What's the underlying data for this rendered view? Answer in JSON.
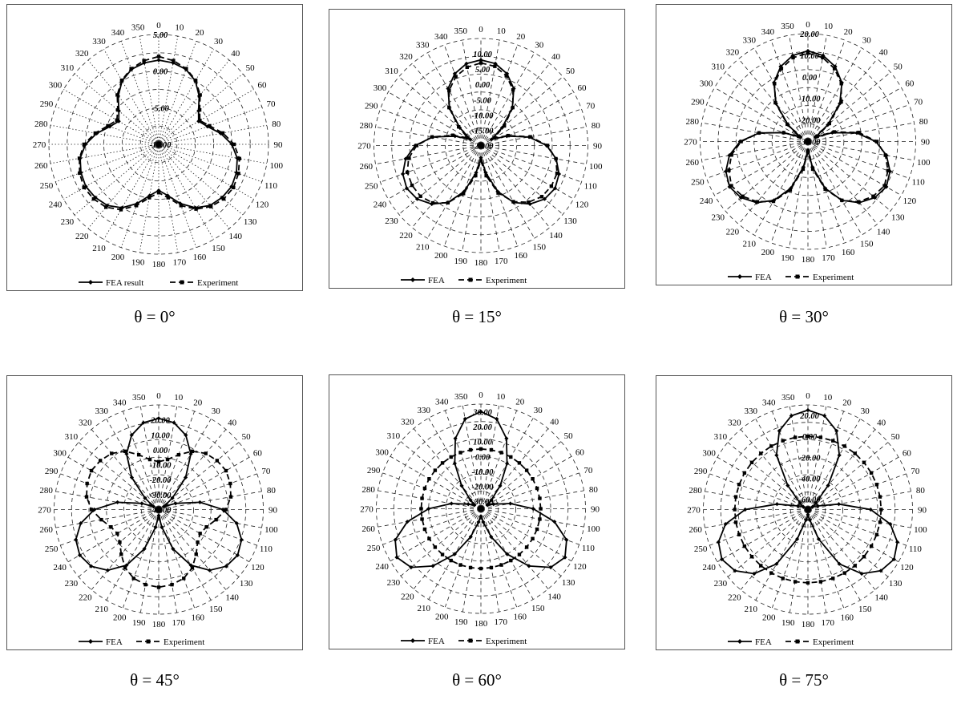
{
  "chart_data": [
    {
      "type": "radar",
      "caption": "θ = 0°",
      "angle_labels": [
        "0",
        "10",
        "20",
        "30",
        "40",
        "50",
        "60",
        "70",
        "80",
        "90",
        "100",
        "110",
        "120",
        "130",
        "140",
        "150",
        "160",
        "170",
        "180",
        "190",
        "200",
        "210",
        "220",
        "230",
        "240",
        "250",
        "260",
        "270",
        "280",
        "290",
        "300",
        "310",
        "320",
        "330",
        "340",
        "350"
      ],
      "radial_tick_labels": [
        "-10.00",
        "-5.00",
        "0.00",
        "5.00"
      ],
      "r_range": [
        -10,
        5
      ],
      "spokes": "dotted",
      "legend": "bottom",
      "series": [
        {
          "name": "FEA result",
          "style": "solid",
          "marker": "diamond",
          "values": [
            1.5,
            1.3,
            0.9,
            0.0,
            -1.4,
            -2.9,
            -3.7,
            -2.9,
            -1.4,
            0.0,
            0.9,
            1.3,
            1.5,
            1.3,
            0.9,
            0.0,
            -1.4,
            -2.9,
            -3.7,
            -2.9,
            -1.4,
            0.0,
            0.9,
            1.3,
            1.5,
            1.3,
            0.9,
            0.0,
            -1.4,
            -2.9,
            -3.7,
            -2.9,
            -1.4,
            0.0,
            0.9,
            1.3
          ]
        },
        {
          "name": "Experiment",
          "style": "dashed",
          "marker": "square",
          "values": [
            2.0,
            1.6,
            1.0,
            0.1,
            -1.2,
            -2.7,
            -3.5,
            -2.6,
            -1.1,
            0.3,
            1.2,
            1.6,
            1.8,
            1.6,
            1.1,
            0.2,
            -1.1,
            -2.6,
            -3.4,
            -2.6,
            -1.1,
            0.3,
            1.2,
            1.6,
            1.8,
            1.5,
            1.0,
            0.2,
            -1.2,
            -2.6,
            -3.4,
            -2.7,
            -1.2,
            0.1,
            1.0,
            1.6
          ]
        }
      ]
    },
    {
      "type": "radar",
      "caption": "θ = 15°",
      "angle_labels": [
        "0",
        "10",
        "20",
        "30",
        "40",
        "50",
        "60",
        "70",
        "80",
        "90",
        "100",
        "110",
        "120",
        "130",
        "140",
        "150",
        "160",
        "170",
        "180",
        "190",
        "200",
        "210",
        "220",
        "230",
        "240",
        "250",
        "260",
        "270",
        "280",
        "290",
        "300",
        "310",
        "320",
        "330",
        "340",
        "350"
      ],
      "radial_tick_labels": [
        "-20.00",
        "-15.00",
        "-10.00",
        "-5.00",
        "0.00",
        "5.00",
        "10.00"
      ],
      "r_range": [
        -20,
        15
      ],
      "spokes": "dashed",
      "legend": "bottom",
      "series": [
        {
          "name": "FEA",
          "style": "solid",
          "marker": "diamond",
          "values": [
            8.0,
            7.2,
            5.0,
            1.5,
            -4.0,
            -11.0,
            -16.0,
            -11.0,
            -4.0,
            1.5,
            5.0,
            7.2,
            8.0,
            7.2,
            5.0,
            1.5,
            -4.0,
            -11.0,
            -16.0,
            -11.0,
            -4.0,
            1.5,
            5.0,
            7.2,
            8.0,
            7.2,
            5.0,
            1.5,
            -4.0,
            -11.0,
            -16.0,
            -11.0,
            -4.0,
            1.5,
            5.0,
            7.2
          ]
        },
        {
          "name": "Experiment",
          "style": "dashed",
          "marker": "square",
          "values": [
            7.0,
            6.3,
            4.3,
            1.0,
            -3.8,
            -10.0,
            -15.0,
            -10.5,
            -3.6,
            1.8,
            4.9,
            6.5,
            6.6,
            6.0,
            4.2,
            1.2,
            -3.5,
            -10.0,
            -15.0,
            -10.0,
            -3.3,
            1.6,
            4.5,
            5.8,
            6.0,
            5.6,
            4.0,
            1.0,
            -3.8,
            -10.2,
            -15.0,
            -10.5,
            -3.8,
            0.8,
            4.0,
            6.0
          ]
        }
      ]
    },
    {
      "type": "radar",
      "caption": "θ = 30°",
      "angle_labels": [
        "0",
        "10",
        "20",
        "30",
        "40",
        "50",
        "60",
        "70",
        "80",
        "90",
        "100",
        "110",
        "120",
        "130",
        "140",
        "150",
        "160",
        "170",
        "180",
        "190",
        "200",
        "210",
        "220",
        "230",
        "240",
        "250",
        "260",
        "270",
        "280",
        "290",
        "300",
        "310",
        "320",
        "330",
        "340",
        "350"
      ],
      "radial_tick_labels": [
        "-30.00",
        "-20.00",
        "-10.00",
        "0.00",
        "10.00",
        "20.00"
      ],
      "r_range": [
        -30,
        20
      ],
      "spokes": "dashed",
      "legend": "bottom",
      "series": [
        {
          "name": "FEA",
          "style": "solid",
          "marker": "diamond",
          "values": [
            12.0,
            10.5,
            7.0,
            1.5,
            -7.0,
            -18.0,
            -26.0,
            -18.0,
            -7.0,
            1.5,
            7.0,
            10.5,
            12.0,
            10.5,
            7.0,
            1.5,
            -7.0,
            -18.0,
            -26.0,
            -18.0,
            -7.0,
            1.5,
            7.0,
            10.5,
            12.0,
            10.5,
            7.0,
            1.5,
            -7.0,
            -18.0,
            -26.0,
            -18.0,
            -7.0,
            1.5,
            7.0,
            10.5
          ]
        },
        {
          "name": "Experiment",
          "style": "dashed",
          "marker": "square",
          "values": [
            11.0,
            9.5,
            6.0,
            1.0,
            -6.0,
            -17.0,
            -25.0,
            -17.0,
            -6.0,
            2.0,
            6.5,
            9.5,
            11.0,
            9.5,
            6.5,
            1.5,
            -6.5,
            -17.0,
            -25.0,
            -17.0,
            -6.0,
            2.0,
            6.5,
            9.5,
            11.0,
            9.0,
            6.0,
            1.0,
            -7.0,
            -18.0,
            -25.0,
            -17.5,
            -6.5,
            1.0,
            6.0,
            9.5
          ]
        }
      ]
    },
    {
      "type": "radar",
      "caption": "θ = 45°",
      "angle_labels": [
        "0",
        "10",
        "20",
        "30",
        "40",
        "50",
        "60",
        "70",
        "80",
        "90",
        "100",
        "110",
        "120",
        "130",
        "140",
        "150",
        "160",
        "170",
        "180",
        "190",
        "200",
        "210",
        "220",
        "230",
        "240",
        "250",
        "260",
        "270",
        "280",
        "290",
        "300",
        "310",
        "320",
        "330",
        "340",
        "350"
      ],
      "radial_tick_labels": [
        "-40.00",
        "-30.00",
        "-20.00",
        "-10.00",
        "0.00",
        "10.00",
        "20.00"
      ],
      "r_range": [
        -40,
        30
      ],
      "spokes": "dashed",
      "legend": "bottom",
      "series": [
        {
          "name": "FEA",
          "style": "solid",
          "marker": "diamond",
          "values": [
            21.0,
            19.0,
            13.0,
            3.0,
            -12.0,
            -28.0,
            -36.0,
            -28.0,
            -12.0,
            3.0,
            13.0,
            19.0,
            21.0,
            19.0,
            13.0,
            3.0,
            -12.0,
            -28.0,
            -36.0,
            -28.0,
            -12.0,
            3.0,
            13.0,
            19.0,
            21.0,
            19.0,
            13.0,
            3.0,
            -12.0,
            -28.0,
            -36.0,
            -28.0,
            -12.0,
            3.0,
            13.0,
            19.0
          ]
        },
        {
          "name": "Experiment",
          "style": "dashed",
          "marker": "square",
          "values": [
            -8.0,
            -6.0,
            -1.0,
            5.0,
            9.0,
            11.0,
            12.0,
            11.0,
            9.0,
            5.0,
            -1.0,
            -6.0,
            -8.0,
            -6.0,
            -1.0,
            5.0,
            9.0,
            11.0,
            12.0,
            11.0,
            9.0,
            5.0,
            -1.0,
            -6.0,
            -8.0,
            -6.0,
            -1.0,
            5.0,
            9.0,
            11.0,
            12.0,
            11.0,
            9.0,
            5.0,
            -1.0,
            -6.0
          ]
        }
      ]
    },
    {
      "type": "radar",
      "caption": "θ = 60°",
      "angle_labels": [
        "0",
        "10",
        "20",
        "30",
        "40",
        "50",
        "60",
        "70",
        "80",
        "90",
        "100",
        "110",
        "120",
        "130",
        "140",
        "150",
        "160",
        "170",
        "180",
        "190",
        "200",
        "210",
        "220",
        "230",
        "240",
        "250",
        "260",
        "270",
        "280",
        "290",
        "300",
        "310",
        "320",
        "330",
        "340",
        "350"
      ],
      "radial_tick_labels": [
        "-30.00",
        "-20.00",
        "-10.00",
        "0.00",
        "10.00",
        "20.00",
        "30.00"
      ],
      "r_range": [
        -35,
        35
      ],
      "spokes": "dashed",
      "legend": "bottom",
      "series": [
        {
          "name": "FEA",
          "style": "solid",
          "marker": "diamond",
          "values": [
            30.0,
            26.0,
            15.0,
            0.0,
            -15.0,
            -26.0,
            -30.0,
            -26.0,
            -15.0,
            0.0,
            15.0,
            26.0,
            30.0,
            26.0,
            15.0,
            0.0,
            -15.0,
            -26.0,
            -30.0,
            -26.0,
            -15.0,
            0.0,
            15.0,
            26.0,
            30.0,
            26.0,
            15.0,
            0.0,
            -15.0,
            -26.0,
            -30.0,
            -26.0,
            -15.0,
            0.0,
            15.0,
            26.0
          ]
        },
        {
          "name": "Experiment",
          "style": "dashed",
          "marker": "square",
          "values": [
            5.0,
            5.0,
            5.0,
            5.0,
            5.0,
            5.0,
            5.0,
            5.0,
            5.0,
            5.0,
            5.0,
            5.0,
            5.0,
            5.0,
            5.0,
            5.0,
            5.0,
            5.0,
            5.0,
            5.0,
            5.0,
            5.0,
            5.0,
            5.0,
            5.0,
            5.0,
            5.0,
            5.0,
            5.0,
            5.0,
            5.0,
            5.0,
            5.0,
            5.0,
            5.0,
            5.0
          ]
        }
      ]
    },
    {
      "type": "radar",
      "caption": "θ = 75°",
      "angle_labels": [
        "0",
        "10",
        "20",
        "30",
        "40",
        "50",
        "60",
        "70",
        "80",
        "90",
        "100",
        "110",
        "120",
        "130",
        "140",
        "150",
        "160",
        "170",
        "180",
        "190",
        "200",
        "210",
        "220",
        "230",
        "240",
        "250",
        "260",
        "270",
        "280",
        "290",
        "300",
        "310",
        "320",
        "330",
        "340",
        "350"
      ],
      "radial_tick_labels": [
        "-60.00",
        "-40.00",
        "-20.00",
        "0.00",
        "20.00"
      ],
      "r_range": [
        -70,
        30
      ],
      "spokes": "dashed",
      "legend": "bottom",
      "series": [
        {
          "name": "FEA",
          "style": "solid",
          "marker": "diamond",
          "values": [
            25.0,
            21.0,
            10.0,
            -10.0,
            -40.0,
            -60.0,
            -65.0,
            -60.0,
            -40.0,
            -10.0,
            10.0,
            21.0,
            25.0,
            21.0,
            10.0,
            -10.0,
            -40.0,
            -60.0,
            -65.0,
            -60.0,
            -40.0,
            -10.0,
            10.0,
            21.0,
            25.0,
            21.0,
            10.0,
            -10.0,
            -40.0,
            -60.0,
            -65.0,
            -60.0,
            -40.0,
            -10.0,
            10.0,
            21.0
          ]
        },
        {
          "name": "Experiment",
          "style": "dashed",
          "marker": "square",
          "values": [
            0.0,
            0.0,
            0.0,
            0.0,
            0.0,
            0.0,
            0.0,
            0.0,
            0.0,
            0.0,
            0.0,
            0.0,
            0.0,
            0.0,
            0.0,
            0.0,
            0.0,
            0.0,
            0.0,
            0.0,
            0.0,
            0.0,
            0.0,
            0.0,
            0.0,
            0.0,
            0.0,
            0.0,
            0.0,
            0.0,
            0.0,
            0.0,
            0.0,
            0.0,
            0.0,
            0.0
          ]
        }
      ]
    }
  ]
}
